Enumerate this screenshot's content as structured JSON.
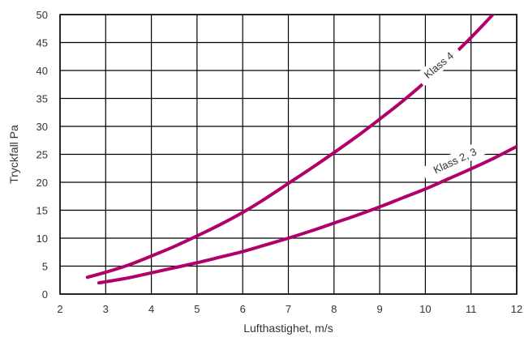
{
  "chart_data": {
    "type": "line",
    "title": "",
    "xlabel": "Lufthastighet, m/s",
    "ylabel": "Tryckfall Pa",
    "xlim": [
      2,
      12
    ],
    "ylim": [
      0,
      50
    ],
    "x_ticks": [
      2,
      3,
      4,
      5,
      6,
      7,
      8,
      9,
      10,
      11,
      12
    ],
    "y_ticks": [
      0,
      5,
      10,
      15,
      20,
      25,
      30,
      35,
      40,
      45,
      50
    ],
    "grid": true,
    "legend": "none",
    "line_color": "#b0006a",
    "series": [
      {
        "name": "Klass 4",
        "x": [
          2.6,
          3.0,
          3.5,
          4.0,
          4.5,
          5.0,
          5.5,
          6.0,
          6.5,
          7.0,
          7.5,
          8.0,
          8.5,
          9.0,
          9.5,
          10.0,
          10.5,
          11.0,
          11.5
        ],
        "y": [
          3.0,
          3.9,
          5.2,
          6.8,
          8.5,
          10.4,
          12.4,
          14.6,
          17.1,
          19.8,
          22.5,
          25.3,
          28.2,
          31.3,
          34.5,
          38.0,
          41.9,
          45.9,
          50.2
        ]
      },
      {
        "name": "Klass 2, 3",
        "x": [
          2.85,
          3.5,
          4.0,
          4.5,
          5.0,
          5.5,
          6.0,
          6.5,
          7.0,
          7.5,
          8.0,
          8.5,
          9.0,
          9.5,
          10.0,
          10.5,
          11.0,
          11.5,
          12.0
        ],
        "y": [
          2.0,
          2.9,
          3.8,
          4.7,
          5.6,
          6.6,
          7.6,
          8.8,
          10.0,
          11.3,
          12.7,
          14.1,
          15.6,
          17.2,
          18.8,
          20.6,
          22.4,
          24.3,
          26.4
        ]
      }
    ],
    "annotations": [
      {
        "series": "Klass 4",
        "text": "Klass 4",
        "x": 10.3,
        "y": 40.9,
        "angle": -40
      },
      {
        "series": "Klass 2, 3",
        "text": "Klass 2, 3",
        "x": 10.65,
        "y": 23.8,
        "angle": -25
      }
    ]
  }
}
